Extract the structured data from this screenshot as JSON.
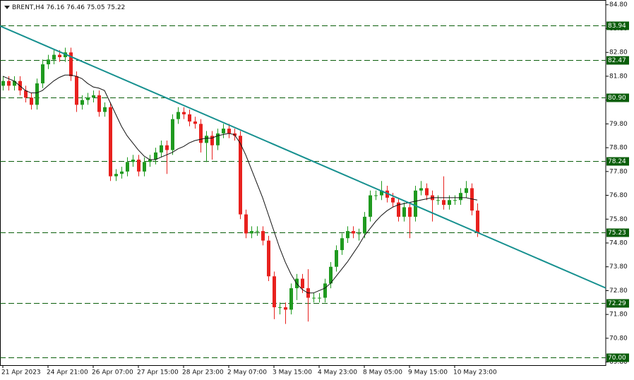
{
  "chart_data": {
    "type": "candlestick",
    "symbol": "BRENT,H4",
    "categories": [
      "21 Apr 2023",
      null,
      null,
      null,
      null,
      null,
      null,
      null,
      "24 Apr 21:00",
      null,
      null,
      null,
      null,
      null,
      null,
      null,
      "26 Apr 07:00",
      null,
      null,
      null,
      null,
      null,
      null,
      null,
      "27 Apr 15:00",
      null,
      null,
      null,
      null,
      null,
      null,
      null,
      "28 Apr 23:00",
      null,
      null,
      null,
      null,
      null,
      null,
      null,
      "2 May 07:00",
      null,
      null,
      null,
      null,
      null,
      null,
      null,
      "3 May 15:00",
      null,
      null,
      null,
      null,
      null,
      null,
      null,
      "4 May 23:00",
      null,
      null,
      null,
      null,
      null,
      null,
      null,
      "8 May 05:00",
      null,
      null,
      null,
      null,
      null,
      null,
      null,
      "9 May 15:00",
      null,
      null,
      null,
      null,
      null,
      null,
      null,
      "10 May 23:00",
      null,
      null,
      null,
      null
    ],
    "open": [
      81.4,
      81.6,
      81.4,
      81.6,
      81.2,
      80.9,
      80.6,
      81.5,
      82.3,
      82.5,
      82.7,
      82.6,
      82.8,
      81.8,
      80.6,
      80.8,
      80.9,
      81.0,
      80.3,
      80.5,
      77.6,
      77.7,
      77.8,
      78.2,
      78.3,
      77.8,
      78.2,
      78.3,
      78.6,
      78.9,
      78.7,
      80.0,
      80.3,
      80.2,
      79.9,
      79.8,
      79.0,
      79.3,
      78.9,
      79.4,
      79.6,
      79.4,
      79.3,
      76.0,
      75.2,
      75.3,
      75.3,
      74.9,
      73.4,
      72.1,
      72.1,
      72.0,
      72.9,
      73.3,
      72.9,
      72.5,
      72.5,
      72.5,
      73.1,
      73.8,
      74.5,
      75.0,
      75.3,
      75.2,
      75.2,
      75.9,
      76.8,
      76.8,
      77.0,
      76.7,
      76.5,
      75.9,
      76.3,
      75.9,
      77.0,
      77.1,
      76.8,
      76.6,
      76.6,
      76.4,
      76.6,
      76.6,
      76.9,
      77.1,
      76.16
    ],
    "high": [
      81.8,
      81.8,
      81.8,
      81.8,
      81.4,
      81.1,
      81.7,
      82.5,
      82.7,
      82.9,
      82.9,
      83.0,
      83.0,
      82.0,
      81.0,
      81.1,
      81.2,
      81.2,
      80.7,
      80.7,
      77.9,
      78.0,
      78.4,
      78.5,
      78.5,
      78.4,
      78.5,
      78.8,
      79.1,
      79.1,
      80.2,
      80.5,
      80.5,
      80.4,
      80.1,
      80.0,
      79.5,
      79.5,
      79.6,
      79.8,
      79.8,
      79.6,
      79.5,
      76.2,
      75.5,
      75.5,
      75.5,
      75.1,
      73.6,
      72.3,
      72.3,
      73.1,
      73.5,
      73.5,
      73.7,
      72.7,
      72.7,
      73.3,
      74.0,
      74.7,
      75.2,
      75.5,
      75.5,
      75.4,
      76.1,
      77.0,
      77.0,
      77.4,
      77.2,
      76.9,
      76.7,
      76.5,
      76.5,
      77.2,
      77.4,
      77.3,
      77.0,
      76.8,
      77.6,
      76.8,
      76.8,
      77.1,
      77.4,
      77.3,
      76.46
    ],
    "low": [
      81.2,
      81.2,
      81.2,
      81.0,
      80.7,
      80.4,
      80.4,
      81.3,
      82.1,
      82.3,
      82.4,
      82.4,
      81.6,
      80.3,
      80.4,
      80.6,
      80.7,
      80.1,
      80.1,
      77.4,
      77.4,
      77.5,
      77.6,
      78.0,
      77.6,
      77.6,
      78.0,
      78.1,
      78.4,
      77.7,
      78.5,
      79.8,
      80.0,
      79.7,
      79.6,
      78.6,
      78.2,
      78.3,
      78.7,
      79.2,
      79.2,
      79.1,
      75.8,
      75.0,
      75.0,
      75.1,
      74.7,
      73.2,
      71.6,
      71.8,
      71.4,
      71.8,
      72.4,
      72.7,
      71.5,
      72.3,
      72.3,
      72.3,
      72.9,
      73.6,
      74.3,
      74.8,
      75.0,
      74.9,
      75.0,
      75.7,
      76.6,
      76.6,
      76.5,
      76.3,
      75.7,
      75.7,
      75.0,
      75.7,
      76.8,
      76.6,
      75.7,
      76.4,
      76.2,
      76.2,
      76.4,
      76.4,
      76.7,
      75.96,
      75.05
    ],
    "close": [
      81.6,
      81.4,
      81.6,
      81.2,
      80.9,
      80.6,
      81.5,
      82.3,
      82.5,
      82.7,
      82.6,
      82.8,
      81.8,
      80.6,
      80.8,
      80.9,
      81.0,
      80.3,
      80.5,
      77.6,
      77.7,
      77.8,
      78.2,
      78.3,
      77.8,
      78.2,
      78.3,
      78.6,
      78.9,
      78.7,
      80.0,
      80.3,
      80.2,
      79.9,
      79.8,
      79.0,
      79.3,
      78.9,
      79.4,
      79.6,
      79.4,
      79.3,
      76.0,
      75.2,
      75.3,
      75.3,
      74.9,
      73.4,
      72.1,
      72.1,
      72.0,
      72.9,
      73.3,
      72.9,
      72.5,
      72.5,
      72.5,
      73.1,
      73.8,
      74.5,
      75.0,
      75.3,
      75.2,
      75.2,
      75.9,
      76.8,
      76.8,
      77.0,
      76.7,
      76.5,
      75.9,
      76.3,
      75.9,
      77.0,
      77.1,
      76.8,
      76.6,
      76.6,
      76.4,
      76.6,
      76.6,
      76.9,
      77.1,
      76.16,
      75.22
    ],
    "up_color": "#1f9a1f",
    "down_color": "#e8211e",
    "ma": {
      "color": "#111111",
      "values": [
        81.8,
        81.7,
        81.6,
        81.4,
        81.2,
        81.1,
        81.1,
        81.2,
        81.4,
        81.6,
        81.75,
        81.85,
        81.85,
        81.8,
        81.7,
        81.5,
        81.35,
        81.3,
        81.2,
        80.7,
        80.2,
        79.7,
        79.3,
        79.0,
        78.7,
        78.45,
        78.3,
        78.3,
        78.4,
        78.5,
        78.6,
        78.75,
        78.85,
        79.0,
        79.1,
        79.15,
        79.2,
        79.2,
        79.3,
        79.35,
        79.4,
        79.35,
        79.0,
        78.5,
        77.9,
        77.3,
        76.7,
        76.0,
        75.3,
        74.6,
        74.0,
        73.5,
        73.1,
        72.85,
        72.7,
        72.7,
        72.8,
        72.9,
        73.1,
        73.4,
        73.7,
        74.0,
        74.35,
        74.7,
        75.1,
        75.4,
        75.7,
        75.95,
        76.15,
        76.3,
        76.4,
        76.45,
        76.5,
        76.55,
        76.6,
        76.65,
        76.7,
        76.7,
        76.7,
        76.7,
        76.7,
        76.7,
        76.7,
        76.65,
        76.6
      ]
    },
    "trendline": {
      "color": "#16908f",
      "values": [
        83.91,
        72.91
      ]
    },
    "levels": {
      "color": "#0b5e0b",
      "values": [
        83.94,
        82.47,
        {
          "value": 80.9,
          "label": "80.90"
        },
        78.24,
        75.23,
        72.29,
        {
          "value": 70.0,
          "label": "70.00"
        }
      ]
    },
    "ylim": [
      69.67,
      85.0
    ],
    "yticks": [
      {
        "value": 84.8,
        "label": "84.80"
      },
      {
        "value": 83.8,
        "label": "83.80"
      },
      {
        "value": 82.8,
        "label": "82.80"
      },
      {
        "value": 81.8,
        "label": "81.80"
      },
      {
        "value": 80.8,
        "label": "80.80"
      },
      {
        "value": 79.8,
        "label": "79.80"
      },
      {
        "value": 78.8,
        "label": "78.80"
      },
      {
        "value": 77.8,
        "label": "77.80"
      },
      {
        "value": 76.8,
        "label": "76.80"
      },
      {
        "value": 75.8,
        "label": "75.80"
      },
      {
        "value": 74.8,
        "label": "74.80"
      },
      {
        "value": 73.8,
        "label": "73.80"
      },
      {
        "value": 72.8,
        "label": "72.80"
      },
      {
        "value": 71.8,
        "label": "71.80"
      },
      {
        "value": 70.8,
        "label": "70.80"
      },
      {
        "value": 69.8,
        "label": "69.80"
      }
    ],
    "grid": false
  }
}
